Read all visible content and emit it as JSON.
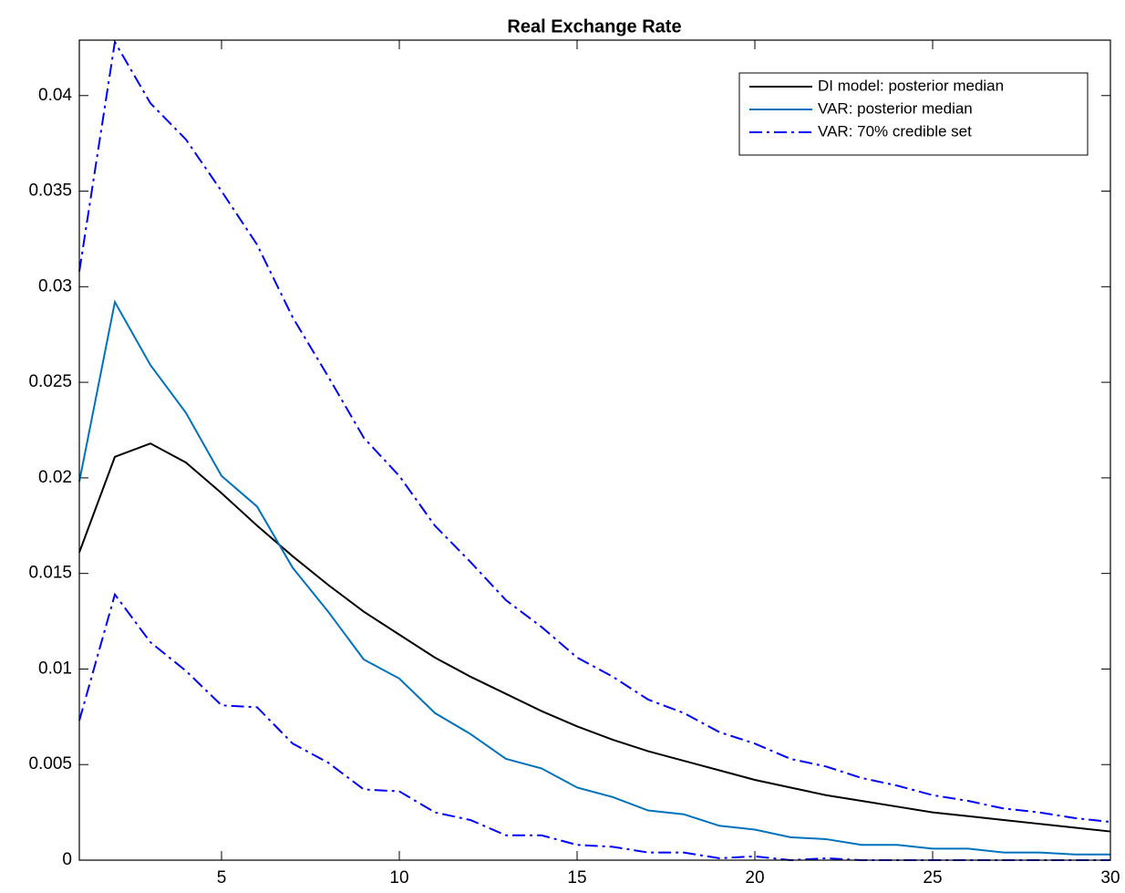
{
  "chart_data": {
    "type": "line",
    "title": "Real Exchange Rate",
    "x": [
      1,
      2,
      3,
      4,
      5,
      6,
      7,
      8,
      9,
      10,
      11,
      12,
      13,
      14,
      15,
      16,
      17,
      18,
      19,
      20,
      21,
      22,
      23,
      24,
      25,
      26,
      27,
      28,
      29,
      30
    ],
    "xlim": [
      1,
      30
    ],
    "xticks": [
      5,
      10,
      15,
      20,
      25,
      30
    ],
    "ylim": [
      0,
      0.0429
    ],
    "yticks": [
      0,
      0.005,
      0.01,
      0.015,
      0.02,
      0.025,
      0.03,
      0.035,
      0.04
    ],
    "legend": "upper-right",
    "series": [
      {
        "name": "DI model: posterior median",
        "color": "#000000",
        "style": "solid",
        "values": [
          0.0161,
          0.0211,
          0.0218,
          0.0208,
          0.0192,
          0.0175,
          0.0159,
          0.0144,
          0.013,
          0.0118,
          0.0106,
          0.0096,
          0.0087,
          0.0078,
          0.007,
          0.0063,
          0.0057,
          0.0052,
          0.0047,
          0.0042,
          0.0038,
          0.0034,
          0.0031,
          0.0028,
          0.0025,
          0.0023,
          0.0021,
          0.0019,
          0.0017,
          0.0015
        ]
      },
      {
        "name": "VAR: posterior median",
        "color": "#0072bd",
        "style": "solid",
        "values": [
          0.0198,
          0.0292,
          0.0259,
          0.0234,
          0.0201,
          0.0185,
          0.0153,
          0.013,
          0.0105,
          0.0095,
          0.0077,
          0.0066,
          0.0053,
          0.0048,
          0.0038,
          0.0033,
          0.0026,
          0.0024,
          0.0018,
          0.0016,
          0.0012,
          0.0011,
          0.0008,
          0.0008,
          0.0006,
          0.0006,
          0.0004,
          0.0004,
          0.0003,
          0.0003
        ]
      },
      {
        "name": "VAR: 70% credible set",
        "color": "#0000ff",
        "style": "dashdot",
        "upper": [
          0.0308,
          0.0428,
          0.0396,
          0.0377,
          0.035,
          0.0322,
          0.0284,
          0.0253,
          0.0221,
          0.0201,
          0.0175,
          0.0156,
          0.0136,
          0.0122,
          0.0106,
          0.0096,
          0.0084,
          0.0077,
          0.0067,
          0.0061,
          0.0053,
          0.0049,
          0.0043,
          0.0039,
          0.0034,
          0.0031,
          0.0027,
          0.0025,
          0.0022,
          0.002
        ],
        "lower": [
          0.0073,
          0.0139,
          0.0114,
          0.0099,
          0.0081,
          0.008,
          0.0061,
          0.0051,
          0.0037,
          0.0036,
          0.0025,
          0.0021,
          0.0013,
          0.0013,
          0.0008,
          0.0007,
          0.0004,
          0.0004,
          0.0001,
          0.0002,
          0,
          0.0001,
          0,
          0,
          0,
          0,
          0,
          0,
          0,
          0
        ]
      }
    ]
  }
}
